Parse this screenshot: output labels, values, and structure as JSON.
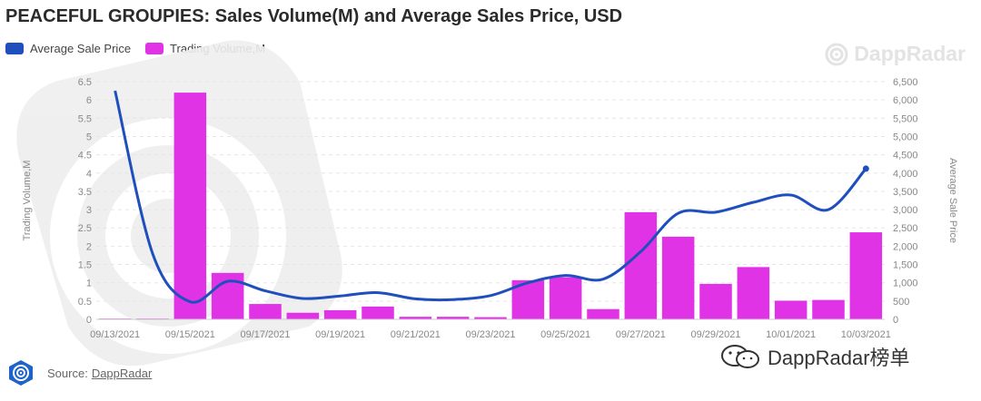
{
  "title": "PEACEFUL GROUPIES: Sales Volume(M) and Average Sales Price, USD",
  "legend": {
    "price_label": "Average Sale Price",
    "volume_label": "Trading Volume,M"
  },
  "brand": {
    "name": "DappRadar"
  },
  "source": {
    "prefix": "Source:",
    "link": "DappRadar"
  },
  "watermark": {
    "text": "DappRadar榜单"
  },
  "colors": {
    "price": "#1f4fbd",
    "volume": "#e133e6"
  },
  "chart_data": {
    "type": "bar",
    "left_axis_label": "Trading Volume,M",
    "right_axis_label": "Average Sale Price",
    "left_ylim": [
      0,
      6.5
    ],
    "right_ylim": [
      0,
      6500
    ],
    "left_ticks": [
      "0",
      "0.5",
      "1",
      "1.5",
      "2",
      "2.5",
      "3",
      "3.5",
      "4",
      "4.5",
      "5",
      "5.5",
      "6",
      "6.5"
    ],
    "right_ticks": [
      "0",
      "500",
      "1,000",
      "1,500",
      "2,000",
      "2,500",
      "3,000",
      "3,500",
      "4,000",
      "4,500",
      "5,000",
      "5,500",
      "6,000",
      "6,500"
    ],
    "categories": [
      "09/13/2021",
      "09/14/2021",
      "09/15/2021",
      "09/16/2021",
      "09/17/2021",
      "09/18/2021",
      "09/19/2021",
      "09/20/2021",
      "09/21/2021",
      "09/22/2021",
      "09/23/2021",
      "09/24/2021",
      "09/25/2021",
      "09/26/2021",
      "09/27/2021",
      "09/28/2021",
      "09/29/2021",
      "09/30/2021",
      "10/01/2021",
      "10/02/2021",
      "10/03/2021"
    ],
    "x_tick_labels": [
      "09/13/2021",
      "",
      "09/15/2021",
      "",
      "09/17/2021",
      "",
      "09/19/2021",
      "",
      "09/21/2021",
      "",
      "09/23/2021",
      "",
      "09/25/2021",
      "",
      "09/27/2021",
      "",
      "09/29/2021",
      "",
      "10/01/2021",
      "",
      "10/03/2021"
    ],
    "series": [
      {
        "name": "Trading Volume,M",
        "type": "bar",
        "axis": "left",
        "values": [
          0.02,
          0.02,
          6.2,
          1.27,
          0.42,
          0.18,
          0.25,
          0.35,
          0.07,
          0.07,
          0.06,
          1.07,
          1.15,
          0.28,
          2.93,
          2.26,
          0.97,
          1.43,
          0.51,
          0.53,
          2.38
        ]
      },
      {
        "name": "Average Sale Price",
        "type": "line",
        "axis": "right",
        "values": [
          6250,
          1800,
          480,
          1040,
          780,
          570,
          640,
          730,
          560,
          540,
          650,
          1000,
          1200,
          1100,
          1850,
          2900,
          2930,
          3200,
          3400,
          3000,
          4120
        ]
      }
    ],
    "grid": true,
    "legend_position": "top-left"
  }
}
